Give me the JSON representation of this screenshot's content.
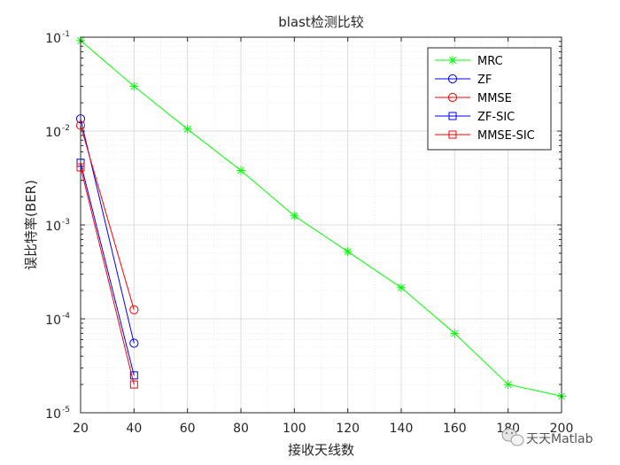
{
  "chart_data": {
    "type": "line",
    "title": "blast检测比较",
    "xlabel": "接收天线数",
    "ylabel": "误比特率(BER)",
    "x_scale": "linear",
    "y_scale": "log",
    "xlim": [
      20,
      200
    ],
    "ylim": [
      1e-05,
      0.1
    ],
    "xticks": [
      20,
      40,
      60,
      80,
      100,
      120,
      140,
      160,
      180,
      200
    ],
    "xtick_labels": [
      "20",
      "40",
      "60",
      "80",
      "100",
      "120",
      "140",
      "160",
      "180",
      "200"
    ],
    "yticks": [
      1e-05,
      0.0001,
      0.001,
      0.01,
      0.1
    ],
    "ytick_labels": [
      {
        "base": "10",
        "exp": "-5"
      },
      {
        "base": "10",
        "exp": "-4"
      },
      {
        "base": "10",
        "exp": "-3"
      },
      {
        "base": "10",
        "exp": "-2"
      },
      {
        "base": "10",
        "exp": "-1"
      }
    ],
    "grid": true,
    "minor_grid": true,
    "legend_position": "top-right",
    "series": [
      {
        "name": "MRC",
        "color": "#00ff00",
        "marker": "asterisk",
        "x": [
          20,
          40,
          60,
          80,
          100,
          120,
          140,
          160,
          180,
          200
        ],
        "y": [
          0.092,
          0.03,
          0.0105,
          0.0038,
          0.00125,
          0.00052,
          0.000215,
          7e-05,
          2e-05,
          1.5e-05
        ]
      },
      {
        "name": "ZF",
        "color": "#0000ff",
        "marker": "circle",
        "x": [
          20,
          40
        ],
        "y": [
          0.0135,
          5.5e-05
        ]
      },
      {
        "name": "MMSE",
        "color": "#ff0000",
        "marker": "circle",
        "x": [
          20,
          40
        ],
        "y": [
          0.0115,
          0.000125
        ]
      },
      {
        "name": "ZF-SIC",
        "color": "#0000ff",
        "marker": "square",
        "x": [
          20,
          40
        ],
        "y": [
          0.0046,
          2.5e-05
        ]
      },
      {
        "name": "MMSE-SIC",
        "color": "#ff0000",
        "marker": "square",
        "x": [
          20,
          40
        ],
        "y": [
          0.0041,
          2e-05
        ]
      }
    ]
  },
  "watermark": {
    "text": "天天Matlab",
    "icon": "wechat-icon"
  }
}
